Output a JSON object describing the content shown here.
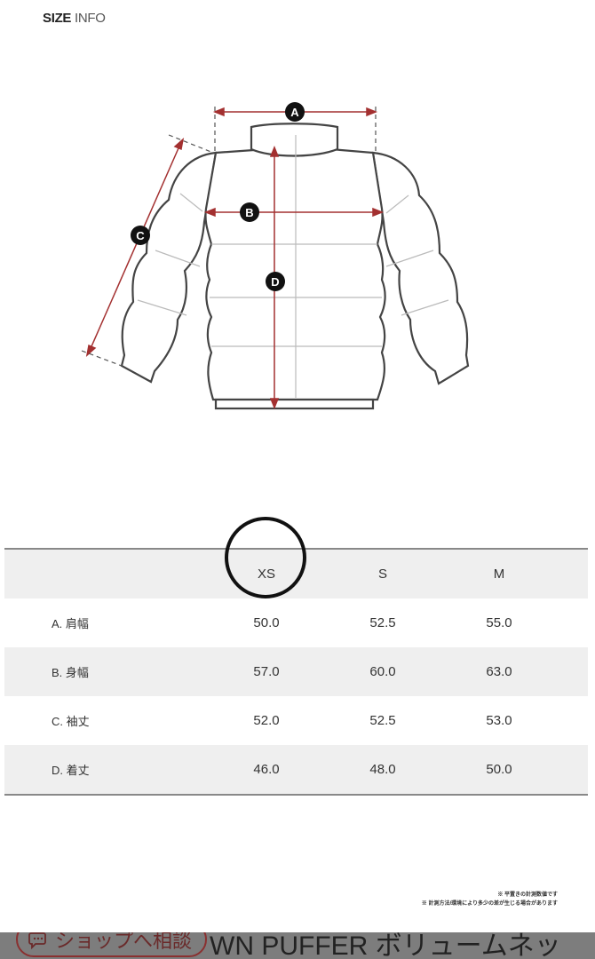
{
  "header": {
    "title_bold": "SIZE",
    "title_thin": " INFO"
  },
  "diagram": {
    "labels": [
      "A",
      "B",
      "C",
      "D"
    ],
    "measure_color": "#a33030"
  },
  "table": {
    "columns": [
      "",
      "XS",
      "S",
      "M"
    ],
    "highlighted_column": "XS",
    "rows": [
      {
        "label": "A. 肩幅",
        "values": [
          "50.0",
          "52.5",
          "55.0"
        ]
      },
      {
        "label": "B. 身幅",
        "values": [
          "57.0",
          "60.0",
          "63.0"
        ]
      },
      {
        "label": "C. 袖丈",
        "values": [
          "52.0",
          "52.5",
          "53.0"
        ]
      },
      {
        "label": "D. 着丈",
        "values": [
          "46.0",
          "48.0",
          "50.0"
        ]
      }
    ]
  },
  "notes": [
    "※ 平置きの計測数値です",
    "※ 計測方法/環境により多少の差が生じる場合があります"
  ],
  "bottom_bar": {
    "shop_button": "ショップへ相談",
    "chat_icon": "chat-bubble-icon",
    "product_title": "WN PUFFER ボリュームネッ"
  }
}
